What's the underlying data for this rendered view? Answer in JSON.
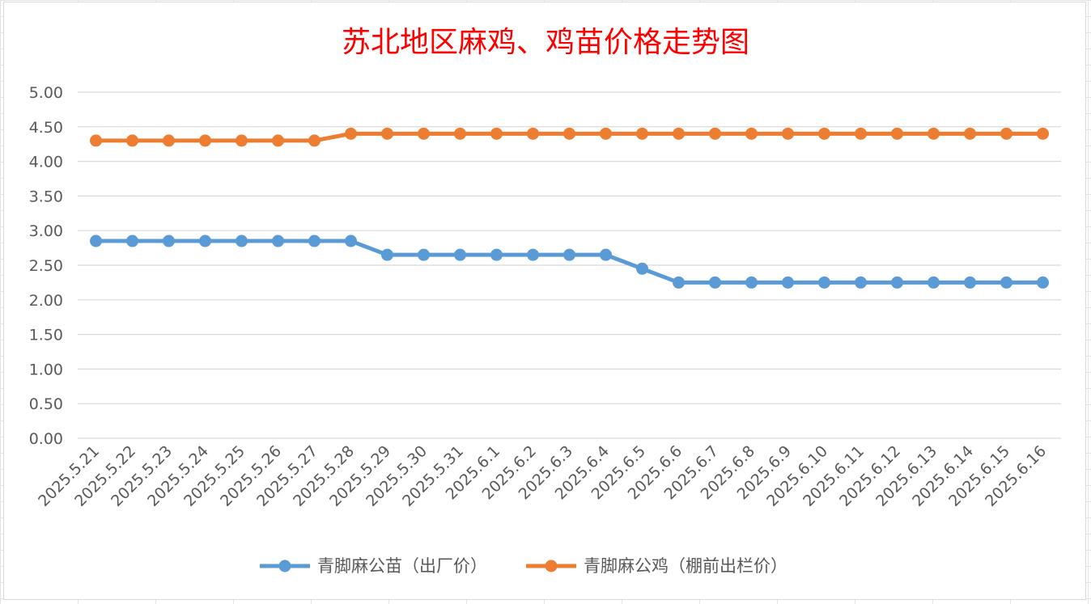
{
  "chart_data": {
    "type": "line",
    "title": "苏北地区麻鸡、鸡苗价格走势图",
    "categories": [
      "2025.5.21",
      "2025.5.22",
      "2025.5.23",
      "2025.5.24",
      "2025.5.25",
      "2025.5.26",
      "2025.5.27",
      "2025.5.28",
      "2025.5.29",
      "2025.5.30",
      "2025.5.31",
      "2025.6.1",
      "2025.6.2",
      "2025.6.3",
      "2025.6.4",
      "2025.6.5",
      "2025.6.6",
      "2025.6.7",
      "2025.6.8",
      "2025.6.9",
      "2025.6.10",
      "2025.6.11",
      "2025.6.12",
      "2025.6.13",
      "2025.6.14",
      "2025.6.15",
      "2025.6.16"
    ],
    "yticks": [
      "0.00",
      "0.50",
      "1.00",
      "1.50",
      "2.00",
      "2.50",
      "3.00",
      "3.50",
      "4.00",
      "4.50",
      "5.00"
    ],
    "ylim": [
      0,
      5
    ],
    "grid": true,
    "legend_position": "bottom",
    "series": [
      {
        "name": "青脚麻公苗（出厂价）",
        "color": "#5b9bd5",
        "values": [
          2.85,
          2.85,
          2.85,
          2.85,
          2.85,
          2.85,
          2.85,
          2.85,
          2.65,
          2.65,
          2.65,
          2.65,
          2.65,
          2.65,
          2.65,
          2.45,
          2.25,
          2.25,
          2.25,
          2.25,
          2.25,
          2.25,
          2.25,
          2.25,
          2.25,
          2.25,
          2.25
        ]
      },
      {
        "name": "青脚麻公鸡（棚前出栏价）",
        "color": "#ed7d31",
        "values": [
          4.3,
          4.3,
          4.3,
          4.3,
          4.3,
          4.3,
          4.3,
          4.4,
          4.4,
          4.4,
          4.4,
          4.4,
          4.4,
          4.4,
          4.4,
          4.4,
          4.4,
          4.4,
          4.4,
          4.4,
          4.4,
          4.4,
          4.4,
          4.4,
          4.4,
          4.4,
          4.4
        ]
      }
    ]
  }
}
